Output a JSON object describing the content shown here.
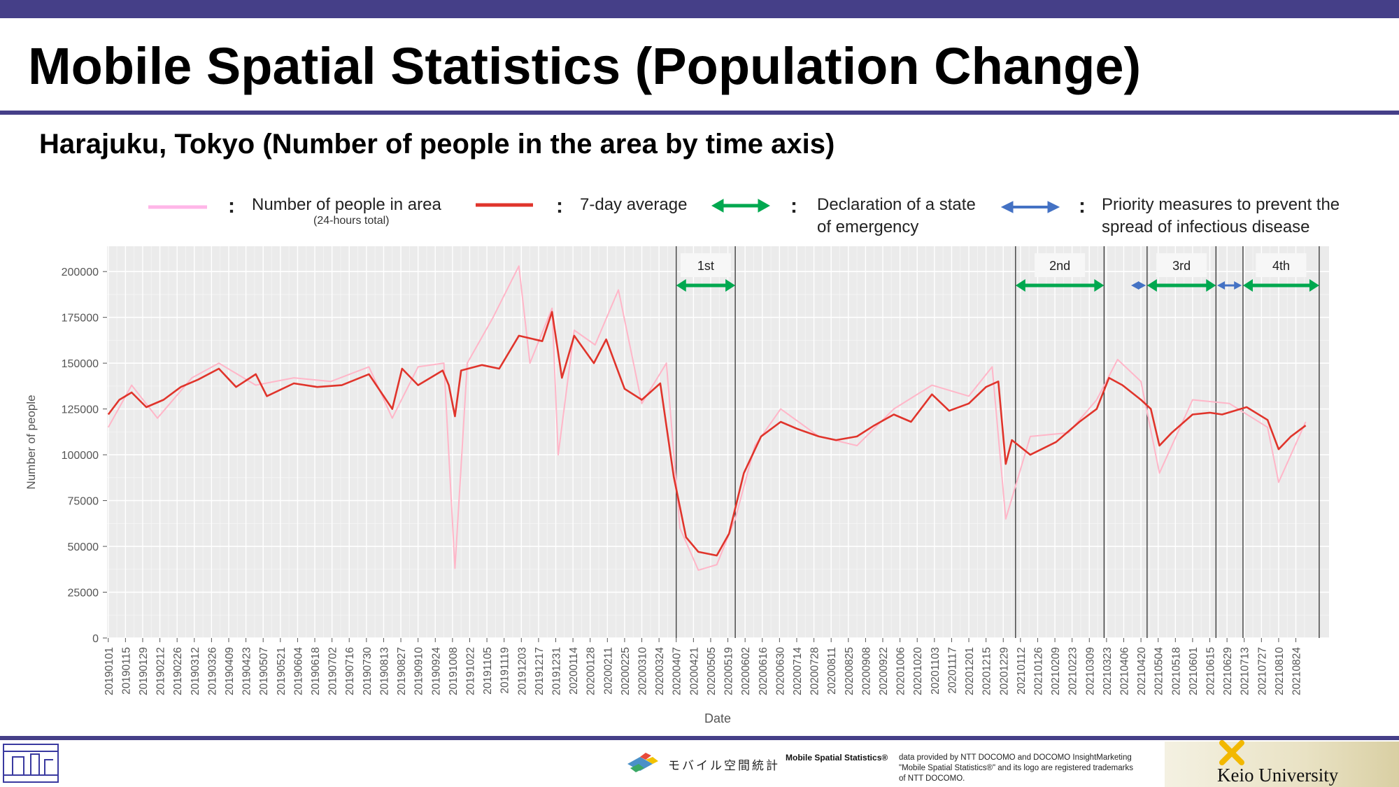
{
  "header": {
    "title": "Mobile Spatial Statistics (Population Change)",
    "subtitle": "Harajuku, Tokyo (Number of people in the area by time axis)"
  },
  "legend": {
    "daily_label": "Number of people in area",
    "daily_note": "(24-hours total)",
    "avg_label": "7-day average",
    "emergency_label_1": "Declaration of a state",
    "emergency_label_2": "of emergency",
    "priority_label_1": "Priority measures to prevent the",
    "priority_label_2": "spread of infectious disease",
    "colon": ":"
  },
  "footer": {
    "brand_name": "モバイル空間統計",
    "credit_bold": "Mobile Spatial Statistics®",
    "credit_1": "data provided by NTT DOCOMO and DOCOMO InsightMarketing",
    "credit_2": "\"Mobile Spatial Statistics®\" and its logo are registered trademarks",
    "credit_3": "of NTT DOCOMO.",
    "university": "Keio University"
  },
  "colors": {
    "header_bar": "#453f88",
    "daily_line": "#ffb6c8",
    "average_line": "#e0342b",
    "emergency_arrow": "#00a84f",
    "priority_arrow": "#4472c4",
    "panel_bg": "#ebebeb"
  },
  "chart_data": {
    "type": "line",
    "xlabel": "Date",
    "ylabel": "Number of people",
    "ylim": [
      0,
      210000
    ],
    "yticks": [
      0,
      25000,
      50000,
      75000,
      100000,
      125000,
      150000,
      175000,
      200000
    ],
    "xlim": [
      "2018-12-31",
      "2021-09-20"
    ],
    "grid": true,
    "legend_position": "top",
    "x_tick_labels": [
      "20190101",
      "20190115",
      "20190129",
      "20190212",
      "20190226",
      "20190312",
      "20190326",
      "20190409",
      "20190423",
      "20190507",
      "20190521",
      "20190604",
      "20190618",
      "20190702",
      "20190716",
      "20190730",
      "20190813",
      "20190827",
      "20190910",
      "20190924",
      "20191008",
      "20191022",
      "20191105",
      "20191119",
      "20191203",
      "20191217",
      "20191231",
      "20200114",
      "20200128",
      "20200211",
      "20200225",
      "20200310",
      "20200324",
      "20200407",
      "20200421",
      "20200505",
      "20200519",
      "20200602",
      "20200616",
      "20200630",
      "20200714",
      "20200728",
      "20200811",
      "20200825",
      "20200908",
      "20200922",
      "20201006",
      "20201020",
      "20201103",
      "20201117",
      "20201201",
      "20201215",
      "20201229",
      "20210112",
      "20210126",
      "20210209",
      "20210223",
      "20210309",
      "20210323",
      "20210406",
      "20210420",
      "20210504",
      "20210518",
      "20210601",
      "20210615",
      "20210629",
      "20210713",
      "20210727",
      "20210810",
      "20210824"
    ],
    "series": [
      {
        "name": "7-day average",
        "x": [
          "2019-01-01",
          "2019-01-10",
          "2019-01-20",
          "2019-02-01",
          "2019-02-15",
          "2019-03-01",
          "2019-03-15",
          "2019-04-01",
          "2019-04-15",
          "2019-05-01",
          "2019-05-10",
          "2019-06-01",
          "2019-06-20",
          "2019-07-10",
          "2019-08-01",
          "2019-08-20",
          "2019-08-28",
          "2019-09-10",
          "2019-09-30",
          "2019-10-05",
          "2019-10-10",
          "2019-10-15",
          "2019-11-01",
          "2019-11-15",
          "2019-12-01",
          "2019-12-20",
          "2019-12-28",
          "2020-01-05",
          "2020-01-15",
          "2020-01-31",
          "2020-02-10",
          "2020-02-25",
          "2020-03-10",
          "2020-03-25",
          "2020-04-05",
          "2020-04-15",
          "2020-04-25",
          "2020-05-10",
          "2020-05-20",
          "2020-06-01",
          "2020-06-15",
          "2020-07-01",
          "2020-07-15",
          "2020-08-01",
          "2020-08-15",
          "2020-09-01",
          "2020-09-15",
          "2020-10-01",
          "2020-10-15",
          "2020-11-01",
          "2020-11-15",
          "2020-12-01",
          "2020-12-15",
          "2020-12-25",
          "2020-12-31",
          "2021-01-05",
          "2021-01-20",
          "2021-02-10",
          "2021-03-01",
          "2021-03-15",
          "2021-03-25",
          "2021-04-05",
          "2021-04-20",
          "2021-04-28",
          "2021-05-05",
          "2021-05-15",
          "2021-06-01",
          "2021-06-15",
          "2021-06-25",
          "2021-07-05",
          "2021-07-15",
          "2021-08-01",
          "2021-08-10",
          "2021-08-20",
          "2021-09-01"
        ],
        "y": [
          122000,
          130000,
          134000,
          126000,
          130000,
          137000,
          141000,
          147000,
          137000,
          144000,
          132000,
          139000,
          137000,
          138000,
          144000,
          125000,
          147000,
          138000,
          146000,
          138000,
          121000,
          146000,
          149000,
          147000,
          165000,
          162000,
          178000,
          142000,
          165000,
          150000,
          163000,
          136000,
          130000,
          139000,
          88000,
          55000,
          47000,
          45000,
          57000,
          90000,
          110000,
          118000,
          114000,
          110000,
          108000,
          110000,
          116000,
          122000,
          118000,
          133000,
          124000,
          128000,
          137000,
          140000,
          95000,
          108000,
          100000,
          107000,
          118000,
          125000,
          142000,
          138000,
          130000,
          125000,
          105000,
          112000,
          122000,
          123000,
          122000,
          124000,
          126000,
          119000,
          103000,
          110000,
          116000
        ]
      },
      {
        "name": "Number of people in area",
        "x": [
          "2019-01-01",
          "2019-01-20",
          "2019-02-10",
          "2019-03-10",
          "2019-04-01",
          "2019-05-01",
          "2019-06-01",
          "2019-07-01",
          "2019-08-01",
          "2019-08-20",
          "2019-09-10",
          "2019-10-01",
          "2019-10-10",
          "2019-10-20",
          "2019-11-10",
          "2019-12-01",
          "2019-12-10",
          "2019-12-28",
          "2020-01-02",
          "2020-01-15",
          "2020-02-01",
          "2020-02-20",
          "2020-03-10",
          "2020-03-30",
          "2020-04-10",
          "2020-04-25",
          "2020-05-10",
          "2020-05-25",
          "2020-06-10",
          "2020-07-01",
          "2020-08-01",
          "2020-09-01",
          "2020-10-01",
          "2020-11-01",
          "2020-12-01",
          "2020-12-20",
          "2020-12-31",
          "2021-01-20",
          "2021-02-20",
          "2021-03-15",
          "2021-04-01",
          "2021-04-20",
          "2021-05-05",
          "2021-06-01",
          "2021-07-01",
          "2021-08-01",
          "2021-08-10",
          "2021-09-01"
        ],
        "y": [
          115000,
          138000,
          120000,
          142000,
          150000,
          138000,
          142000,
          140000,
          148000,
          120000,
          148000,
          150000,
          38000,
          150000,
          175000,
          203000,
          150000,
          180000,
          100000,
          168000,
          160000,
          190000,
          128000,
          150000,
          60000,
          37000,
          40000,
          65000,
          105000,
          125000,
          110000,
          105000,
          125000,
          138000,
          132000,
          148000,
          65000,
          110000,
          112000,
          130000,
          152000,
          140000,
          90000,
          130000,
          128000,
          115000,
          85000,
          118000
        ]
      }
    ],
    "annotations": [
      {
        "label": "1st",
        "type": "Declaration of a state of emergency",
        "start": "2020-04-07",
        "end": "2020-05-25"
      },
      {
        "label": "2nd",
        "type": "Declaration of a state of emergency",
        "start": "2021-01-08",
        "end": "2021-03-21"
      },
      {
        "label": "",
        "type": "Priority measures to prevent the spread of infectious disease",
        "start": "2021-04-12",
        "end": "2021-04-24"
      },
      {
        "label": "3rd",
        "type": "Declaration of a state of emergency",
        "start": "2021-04-25",
        "end": "2021-06-20"
      },
      {
        "label": "",
        "type": "Priority measures to prevent the spread of infectious disease",
        "start": "2021-06-21",
        "end": "2021-07-11"
      },
      {
        "label": "4th",
        "type": "Declaration of a state of emergency",
        "start": "2021-07-12",
        "end": "2021-09-12"
      }
    ]
  }
}
